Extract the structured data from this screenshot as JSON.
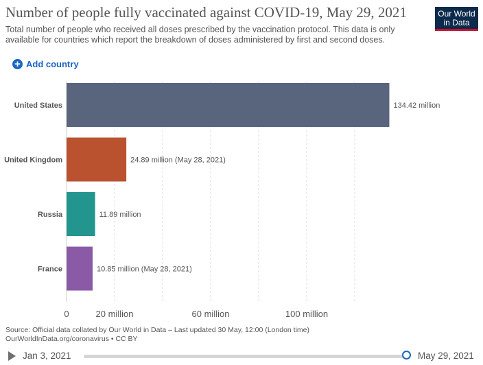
{
  "header": {
    "title": "Number of people fully vaccinated against COVID-19, May 29, 2021",
    "subtitle": "Total number of people who received all doses prescribed by the vaccination protocol. This data is only available for countries which report the breakdown of doses administered by first and second doses.",
    "logo_line1": "Our World",
    "logo_line2": "in Data"
  },
  "controls": {
    "add_country_label": "Add country",
    "add_icon": "plus-circle-icon"
  },
  "chart_data": {
    "type": "bar",
    "orientation": "horizontal",
    "title": "Number of people fully vaccinated against COVID-19, May 29, 2021",
    "categories": [
      "United States",
      "United Kingdom",
      "Russia",
      "France"
    ],
    "values": [
      134.42,
      24.89,
      11.89,
      10.85
    ],
    "value_labels": [
      "134.42 million",
      "24.89 million (May 28, 2021)",
      "11.89 million",
      "10.85 million (May 28, 2021)"
    ],
    "colors": [
      "#58657c",
      "#bb522f",
      "#22968e",
      "#8a5aa7"
    ],
    "xlim": [
      0,
      140
    ],
    "xticks": [
      0,
      20,
      60,
      100
    ],
    "xtick_labels": [
      "0",
      "20 million",
      "60 million",
      "100 million"
    ],
    "gridlines": [
      0,
      20,
      40,
      60,
      80,
      100,
      120
    ],
    "unit": "million"
  },
  "footer": {
    "source_line1": "Source: Official data collated by Our World in Data – Last updated 30 May, 12:00 (London time)",
    "source_line2": "OurWorldInData.org/coronavirus • CC BY"
  },
  "timeline": {
    "start_date": "Jan 3, 2021",
    "end_date": "May 29, 2021",
    "position_fraction": 1.0
  }
}
